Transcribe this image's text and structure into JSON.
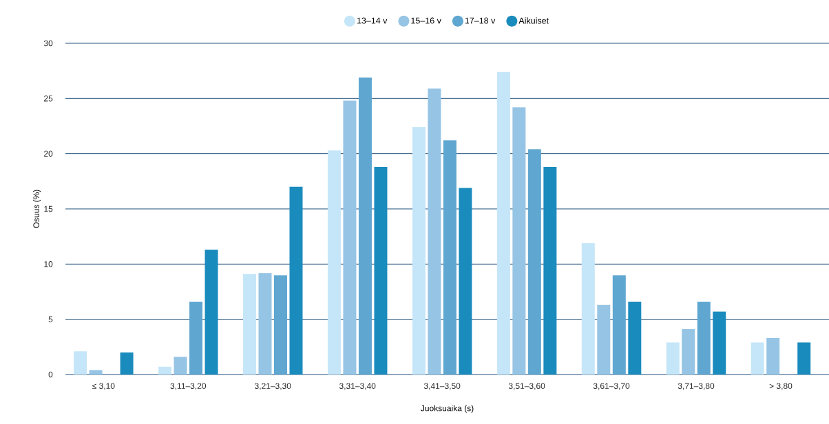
{
  "chart_data": {
    "type": "bar",
    "xlabel": "Juoksuaika (s)",
    "ylabel": "Osuus (%)",
    "categories": [
      "≤ 3,10",
      "3,11–3,20",
      "3,21–3,30",
      "3,31–3,40",
      "3,41–3,50",
      "3,51–3,60",
      "3,61–3,70",
      "3,71–3,80",
      "> 3,80"
    ],
    "series": [
      {
        "name": "13–14 v",
        "color": "#c5e6f8",
        "values": [
          2.1,
          0.7,
          9.1,
          20.3,
          22.4,
          27.4,
          11.9,
          2.9,
          2.9
        ]
      },
      {
        "name": "15–16 v",
        "color": "#96c4e4",
        "values": [
          0.4,
          1.6,
          9.2,
          24.8,
          25.9,
          24.2,
          6.3,
          4.1,
          3.3
        ]
      },
      {
        "name": "17–18 v",
        "color": "#5fa7d1",
        "values": [
          0,
          6.6,
          9.0,
          26.9,
          21.2,
          20.4,
          9.0,
          6.6,
          0
        ]
      },
      {
        "name": "Aikuiset",
        "color": "#1a8bbd",
        "values": [
          2.0,
          11.3,
          17.0,
          18.8,
          16.9,
          18.8,
          6.6,
          5.7,
          2.9
        ]
      }
    ],
    "ylim": [
      0,
      30
    ],
    "yticks": [
      0,
      5,
      10,
      15,
      20,
      25,
      30
    ],
    "grid": "y",
    "legend": "top"
  }
}
